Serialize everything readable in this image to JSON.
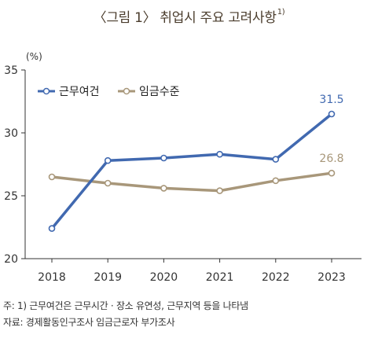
{
  "title": "〈그림 1〉 취업시 주요 고려사항",
  "title_sup": "1)",
  "chart_data": {
    "type": "line",
    "unit_label": "(%)",
    "x": [
      "2018",
      "2019",
      "2020",
      "2021",
      "2022",
      "2023"
    ],
    "ylim": [
      20,
      35
    ],
    "yticks": [
      20,
      25,
      30,
      35
    ],
    "grid": false,
    "legend_position": "top-left",
    "series": [
      {
        "name": "근무여건",
        "color": "#4169b0",
        "values": [
          22.4,
          27.8,
          28.0,
          28.3,
          27.9,
          31.5
        ],
        "end_label": "31.5"
      },
      {
        "name": "임금수준",
        "color": "#a8977a",
        "values": [
          26.5,
          26.0,
          25.6,
          25.4,
          26.2,
          26.8
        ],
        "end_label": "26.8"
      }
    ]
  },
  "notes": {
    "note1": "주: 1) 근무여건은 근무시간 · 장소 유연성, 근무지역 등을 나타냄",
    "source": "자료: 경제활동인구조사 임금근로자 부가조사"
  }
}
